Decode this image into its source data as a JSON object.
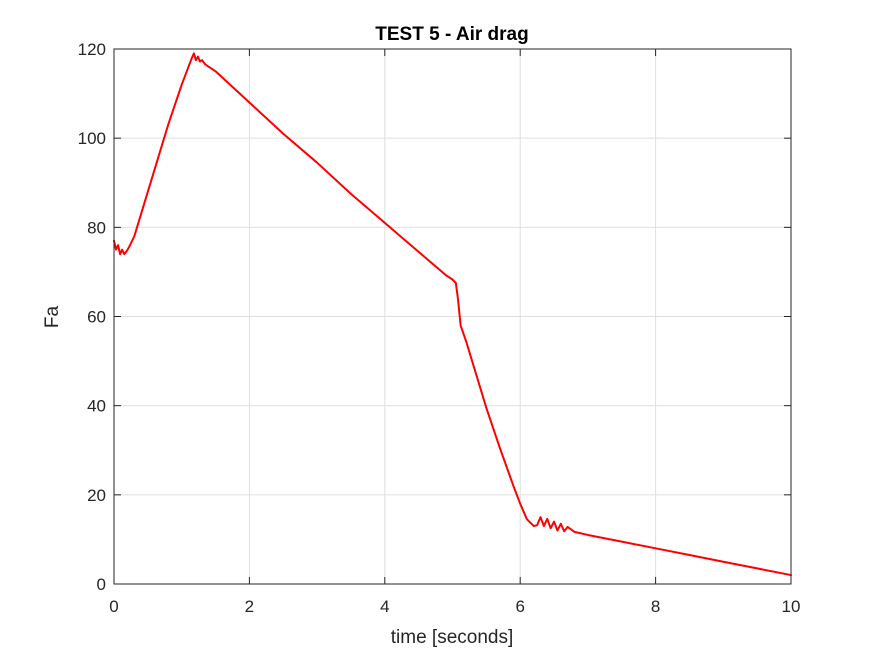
{
  "chart_data": {
    "type": "line",
    "title": "TEST 5 - Air drag",
    "xlabel": "time [seconds]",
    "ylabel": "Fa",
    "xlim": [
      0,
      10
    ],
    "ylim": [
      0,
      120
    ],
    "xticks": [
      0,
      2,
      4,
      6,
      8,
      10
    ],
    "yticks": [
      0,
      20,
      40,
      60,
      80,
      100,
      120
    ],
    "grid": true,
    "line_color": "#ff0000",
    "series": [
      {
        "x": [
          0,
          0.03,
          0.06,
          0.09,
          0.12,
          0.15,
          0.18,
          0.22,
          0.3,
          0.5,
          0.8,
          1.0,
          1.15,
          1.18,
          1.21,
          1.24,
          1.27,
          1.3,
          1.35,
          1.5,
          2,
          2.5,
          3,
          3.5,
          4,
          4.5,
          4.9,
          5.0,
          5.05,
          5.08,
          5.12,
          5.2,
          5.3,
          5.5,
          5.7,
          5.9,
          6.0,
          6.1,
          6.2,
          6.25,
          6.3,
          6.35,
          6.4,
          6.45,
          6.5,
          6.55,
          6.6,
          6.65,
          6.7,
          6.8,
          7,
          7.5,
          8,
          8.5,
          9,
          9.5,
          10
        ],
        "y": [
          77,
          75,
          76,
          74,
          75,
          74,
          74.5,
          75.5,
          78,
          88,
          103,
          112,
          118,
          119,
          117.5,
          118.3,
          117.2,
          117.5,
          116.5,
          115,
          108,
          101,
          94.5,
          87.5,
          81,
          74.5,
          69.3,
          68.3,
          67.5,
          64,
          58,
          54.5,
          49.5,
          39.5,
          30.5,
          22,
          18,
          14.5,
          13,
          13.2,
          15,
          13,
          14.6,
          12.5,
          14,
          12,
          13.5,
          11.8,
          12.8,
          11.7,
          11,
          9.5,
          8,
          6.5,
          5,
          3.5,
          2
        ]
      }
    ]
  }
}
